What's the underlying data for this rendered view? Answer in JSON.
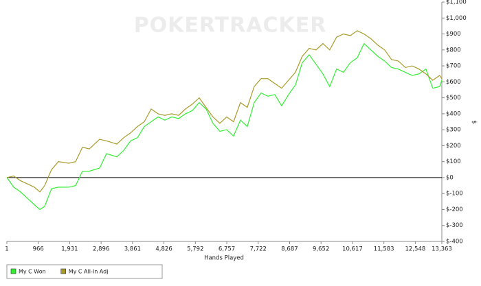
{
  "chart_data": {
    "type": "line",
    "watermark": "POKERTRACKER",
    "x_label": "Hands Played",
    "y_label": "$",
    "x": [
      1,
      212,
      423,
      634,
      845,
      1014,
      1162,
      1373,
      1584,
      1900,
      2112,
      2323,
      2534,
      2850,
      3062,
      3378,
      3589,
      3800,
      4011,
      4222,
      4433,
      4644,
      4855,
      5066,
      5277,
      5488,
      5699,
      5910,
      6121,
      6332,
      6543,
      6754,
      6965,
      7176,
      7387,
      7598,
      7809,
      8020,
      8231,
      8442,
      8653,
      8864,
      9075,
      9286,
      9497,
      9708,
      9919,
      10130,
      10341,
      10552,
      10763,
      10974,
      11185,
      11396,
      11607,
      11818,
      12029,
      12240,
      12451,
      12662,
      12873,
      13084,
      13295,
      13363
    ],
    "series": [
      {
        "name": "My C Won",
        "color": "#33ee33",
        "values": [
          0,
          -60,
          -90,
          -130,
          -170,
          -200,
          -180,
          -70,
          -60,
          -60,
          -50,
          40,
          40,
          60,
          150,
          130,
          170,
          230,
          250,
          320,
          350,
          380,
          360,
          380,
          370,
          400,
          420,
          470,
          430,
          340,
          290,
          300,
          260,
          360,
          320,
          470,
          530,
          510,
          520,
          450,
          520,
          580,
          720,
          770,
          710,
          650,
          570,
          680,
          660,
          720,
          750,
          840,
          800,
          760,
          730,
          690,
          680,
          660,
          640,
          650,
          680,
          560,
          570,
          610
        ]
      },
      {
        "name": "My C All-In Adj",
        "color": "#a89a2a",
        "values": [
          0,
          10,
          -20,
          -40,
          -60,
          -90,
          -50,
          50,
          100,
          90,
          100,
          190,
          180,
          240,
          230,
          210,
          250,
          280,
          320,
          350,
          430,
          400,
          390,
          400,
          390,
          430,
          460,
          500,
          440,
          380,
          340,
          380,
          350,
          470,
          440,
          570,
          620,
          620,
          590,
          560,
          610,
          660,
          760,
          810,
          800,
          840,
          800,
          880,
          900,
          890,
          920,
          900,
          870,
          830,
          800,
          740,
          730,
          690,
          700,
          680,
          650,
          610,
          640,
          620
        ]
      }
    ],
    "xlim": [
      1,
      13363
    ],
    "xticks": [
      1,
      966,
      {
        "value": 1931,
        "label": "1,931"
      },
      {
        "value": 2896,
        "label": "2,896"
      },
      {
        "value": 3861,
        "label": "3,861"
      },
      {
        "value": 4826,
        "label": "4,826"
      },
      {
        "value": 5792,
        "label": "5,792"
      },
      {
        "value": 6757,
        "label": "6,757"
      },
      {
        "value": 7722,
        "label": "7,722"
      },
      {
        "value": 8687,
        "label": "8,687"
      },
      {
        "value": 9652,
        "label": "9,652"
      },
      {
        "value": 10617,
        "label": "10,617"
      },
      {
        "value": 11583,
        "label": "11,583"
      },
      {
        "value": 12548,
        "label": "12,548"
      },
      {
        "value": 13363,
        "label": "13,363"
      }
    ],
    "ylim": [
      -400,
      1100
    ],
    "yticks": [
      {
        "value": -400,
        "label": "$-400"
      },
      {
        "value": -300,
        "label": "$-300"
      },
      {
        "value": -200,
        "label": "$-200"
      },
      {
        "value": -100,
        "label": "$-100"
      },
      {
        "value": 0,
        "label": "$0"
      },
      {
        "value": 100,
        "label": "$100"
      },
      {
        "value": 200,
        "label": "$200"
      },
      {
        "value": 300,
        "label": "$300"
      },
      {
        "value": 400,
        "label": "$400"
      },
      {
        "value": 500,
        "label": "$500"
      },
      {
        "value": 600,
        "label": "$600"
      },
      {
        "value": 700,
        "label": "$700"
      },
      {
        "value": 800,
        "label": "$800"
      },
      {
        "value": 900,
        "label": "$900"
      },
      {
        "value": 1000,
        "label": "$1,000"
      },
      {
        "value": 1100,
        "label": "$1,100"
      }
    ],
    "zero_line": true,
    "legend": "bottom-left"
  }
}
